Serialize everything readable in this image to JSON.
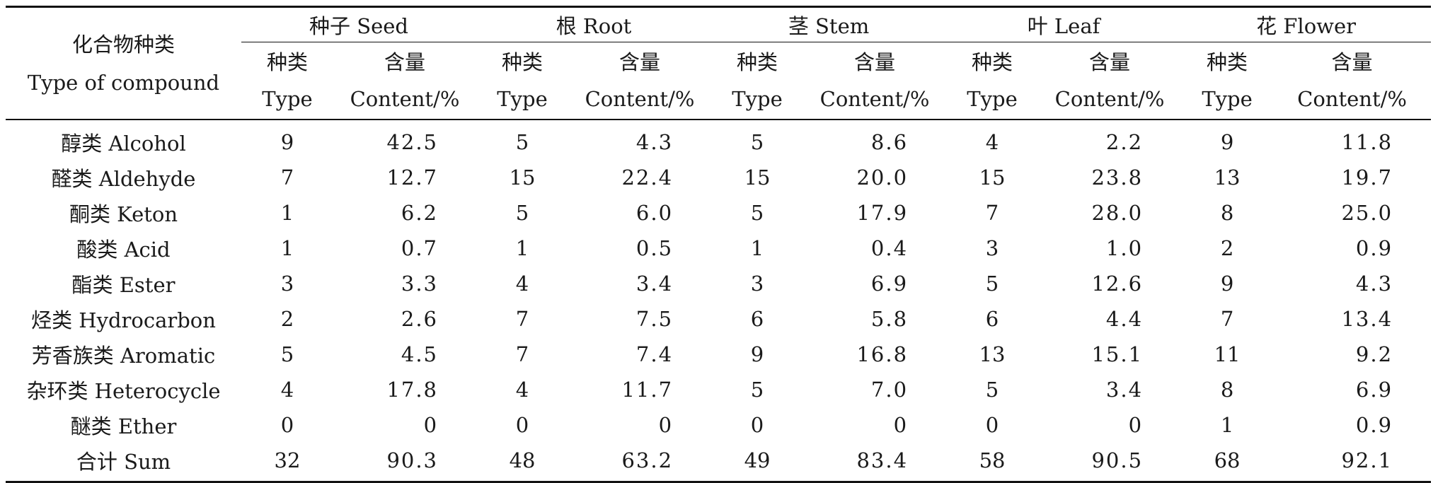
{
  "header": {
    "compound_zh": "化合物种类",
    "compound_en": "Type of compound",
    "type_zh": "种类",
    "type_en": "Type",
    "content_zh": "含量",
    "content_en": "Content/%",
    "groups": [
      "种子 Seed",
      "根 Root",
      "茎 Stem",
      "叶 Leaf",
      "花 Flower"
    ]
  },
  "rows": [
    {
      "name": "醇类 Alcohol",
      "cells": [
        "9",
        "42.5",
        "5",
        "4.3",
        "5",
        "8.6",
        "4",
        "2.2",
        "9",
        "11.8"
      ]
    },
    {
      "name": "醛类 Aldehyde",
      "cells": [
        "7",
        "12.7",
        "15",
        "22.4",
        "15",
        "20.0",
        "15",
        "23.8",
        "13",
        "19.7"
      ]
    },
    {
      "name": "酮类 Keton",
      "cells": [
        "1",
        "6.2",
        "5",
        "6.0",
        "5",
        "17.9",
        "7",
        "28.0",
        "8",
        "25.0"
      ]
    },
    {
      "name": "酸类 Acid",
      "cells": [
        "1",
        "0.7",
        "1",
        "0.5",
        "1",
        "0.4",
        "3",
        "1.0",
        "2",
        "0.9"
      ]
    },
    {
      "name": "酯类 Ester",
      "cells": [
        "3",
        "3.3",
        "4",
        "3.4",
        "3",
        "6.9",
        "5",
        "12.6",
        "9",
        "4.3"
      ]
    },
    {
      "name": "烃类 Hydrocarbon",
      "cells": [
        "2",
        "2.6",
        "7",
        "7.5",
        "6",
        "5.8",
        "6",
        "4.4",
        "7",
        "13.4"
      ]
    },
    {
      "name": "芳香族类 Aromatic",
      "cells": [
        "5",
        "4.5",
        "7",
        "7.4",
        "9",
        "16.8",
        "13",
        "15.1",
        "11",
        "9.2"
      ]
    },
    {
      "name": "杂环类 Heterocycle",
      "cells": [
        "4",
        "17.8",
        "4",
        "11.7",
        "5",
        "7.0",
        "5",
        "3.4",
        "8",
        "6.9"
      ]
    },
    {
      "name": "醚类 Ether",
      "cells": [
        "0",
        "0",
        "0",
        "0",
        "0",
        "0",
        "0",
        "0",
        "1",
        "0.9"
      ]
    },
    {
      "name": "合计 Sum",
      "cells": [
        "32",
        "90.3",
        "48",
        "63.2",
        "49",
        "83.4",
        "58",
        "90.5",
        "68",
        "92.1"
      ]
    }
  ]
}
